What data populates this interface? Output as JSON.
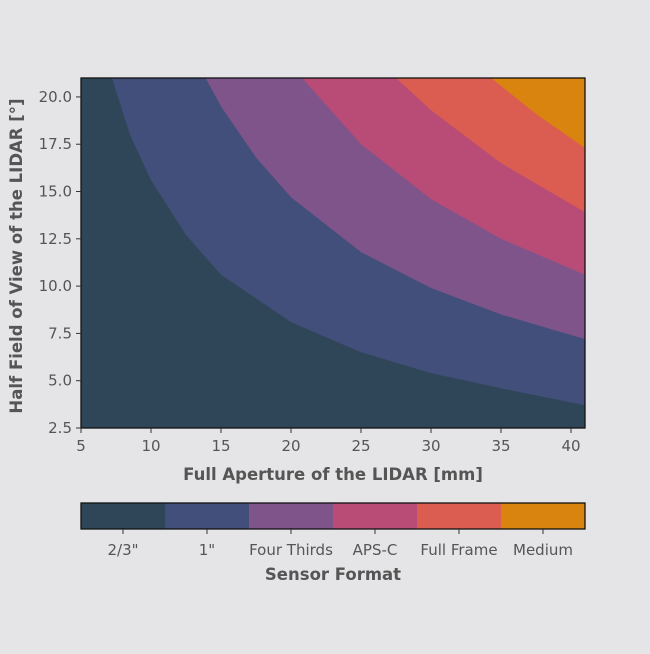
{
  "chart_data": {
    "type": "heatmap",
    "title": "",
    "xlabel": "Full Aperture of the LIDAR [mm]",
    "ylabel": "Half Field of View of the LIDAR [°]",
    "xlim": [
      5,
      41
    ],
    "ylim": [
      2.5,
      21
    ],
    "x_ticks": [
      "5",
      "10",
      "15",
      "20",
      "25",
      "30",
      "35",
      "40"
    ],
    "y_ticks": [
      "2.5",
      "5.0",
      "7.5",
      "10.0",
      "12.5",
      "15.0",
      "17.5",
      "20.0"
    ],
    "grid": false,
    "boundaries": [
      {
        "between": [
          "2/3\"",
          "1\""
        ],
        "points": [
          [
            7.2,
            21
          ],
          [
            8.5,
            18
          ],
          [
            10,
            15.6
          ],
          [
            12.5,
            12.7
          ],
          [
            15,
            10.6
          ],
          [
            20,
            8.1
          ],
          [
            25,
            6.5
          ],
          [
            30,
            5.4
          ],
          [
            35,
            4.6
          ],
          [
            41,
            3.7
          ]
        ]
      },
      {
        "between": [
          "1\"",
          "Four Thirds"
        ],
        "points": [
          [
            13.9,
            21
          ],
          [
            15,
            19.5
          ],
          [
            17.5,
            16.8
          ],
          [
            20,
            14.7
          ],
          [
            25,
            11.8
          ],
          [
            30,
            9.9
          ],
          [
            35,
            8.5
          ],
          [
            41,
            7.2
          ]
        ]
      },
      {
        "between": [
          "Four Thirds",
          "APS-C"
        ],
        "points": [
          [
            20.8,
            21
          ],
          [
            25,
            17.5
          ],
          [
            30,
            14.6
          ],
          [
            35,
            12.5
          ],
          [
            41,
            10.6
          ]
        ]
      },
      {
        "between": [
          "APS-C",
          "Full Frame"
        ],
        "points": [
          [
            27.5,
            21
          ],
          [
            30,
            19.3
          ],
          [
            35,
            16.5
          ],
          [
            41,
            13.9
          ]
        ]
      },
      {
        "between": [
          "Full Frame",
          "Medium"
        ],
        "points": [
          [
            34.3,
            21
          ],
          [
            37.5,
            19.1
          ],
          [
            41,
            17.3
          ]
        ]
      }
    ],
    "colorbar": {
      "label": "Sensor Format",
      "orientation": "horizontal",
      "categories": [
        "2/3\"",
        "1\"",
        "Four Thirds",
        "APS-C",
        "Full Frame",
        "Medium"
      ],
      "colors": [
        "#2e4657",
        "#424f7a",
        "#7e548a",
        "#b94c77",
        "#db5c51",
        "#d9840f"
      ]
    }
  }
}
